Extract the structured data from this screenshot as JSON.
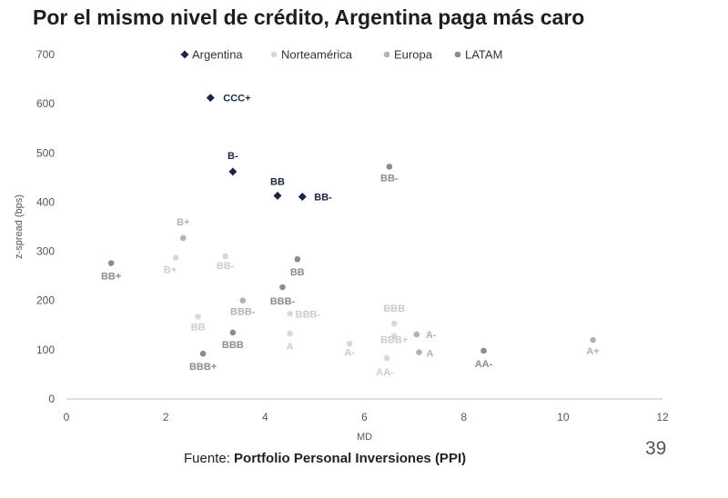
{
  "page": {
    "source_prefix": "Fuente:",
    "source_name": "Portfolio Personal Inversiones (PPI)",
    "page_number": "39"
  },
  "chart_data": {
    "type": "scatter",
    "title": "Por el mismo nivel de crédito, Argentina paga más caro",
    "xlabel": "MD",
    "ylabel": "z-spread (bps)",
    "xlim": [
      0,
      12
    ],
    "ylim": [
      0,
      700
    ],
    "x_ticks": [
      "0",
      "2",
      "4",
      "6",
      "8",
      "10",
      "12"
    ],
    "y_ticks": [
      "0",
      "100",
      "200",
      "300",
      "400",
      "500",
      "600",
      "700"
    ],
    "grid": false,
    "legend_position": "top",
    "series": [
      {
        "name": "Argentina",
        "color": "#1b2845",
        "marker": "diamond",
        "points": [
          {
            "x": 2.9,
            "y": 612,
            "label": "CCC+"
          },
          {
            "x": 3.35,
            "y": 462,
            "label": "B-"
          },
          {
            "x": 4.25,
            "y": 413,
            "label": "BB"
          },
          {
            "x": 4.75,
            "y": 411,
            "label": "BB-"
          }
        ]
      },
      {
        "name": "Norteamérica",
        "color": "#d9d9d9",
        "marker": "circle",
        "points": [
          {
            "x": 2.2,
            "y": 287,
            "label": "B+"
          },
          {
            "x": 3.2,
            "y": 290,
            "label": "BB-"
          },
          {
            "x": 2.65,
            "y": 167,
            "label": "BB"
          },
          {
            "x": 4.5,
            "y": 173,
            "label": "BBB-"
          },
          {
            "x": 4.5,
            "y": 133,
            "label": "A"
          },
          {
            "x": 5.7,
            "y": 112,
            "label": "A-"
          },
          {
            "x": 6.6,
            "y": 128,
            "label": "BBB+"
          },
          {
            "x": 6.45,
            "y": 83,
            "label": "AA-"
          },
          {
            "x": 6.6,
            "y": 153,
            "label": "BBB"
          }
        ]
      },
      {
        "name": "Europa",
        "color": "#b3b3b3",
        "marker": "circle",
        "points": [
          {
            "x": 2.35,
            "y": 327,
            "label": "B+"
          },
          {
            "x": 3.55,
            "y": 200,
            "label": "BBB-"
          },
          {
            "x": 7.05,
            "y": 131,
            "label": "A-"
          },
          {
            "x": 7.1,
            "y": 95,
            "label": "A"
          },
          {
            "x": 10.6,
            "y": 120,
            "label": "A+"
          }
        ]
      },
      {
        "name": "LATAM",
        "color": "#8c8c8c",
        "marker": "circle",
        "points": [
          {
            "x": 0.9,
            "y": 276,
            "label": "BB+"
          },
          {
            "x": 6.5,
            "y": 472,
            "label": "BB-"
          },
          {
            "x": 4.65,
            "y": 284,
            "label": "BB"
          },
          {
            "x": 4.35,
            "y": 227,
            "label": "BBB-"
          },
          {
            "x": 3.35,
            "y": 135,
            "label": "BBB"
          },
          {
            "x": 2.75,
            "y": 92,
            "label": "BBB+"
          },
          {
            "x": 8.4,
            "y": 98,
            "label": "AA-"
          }
        ]
      }
    ]
  }
}
